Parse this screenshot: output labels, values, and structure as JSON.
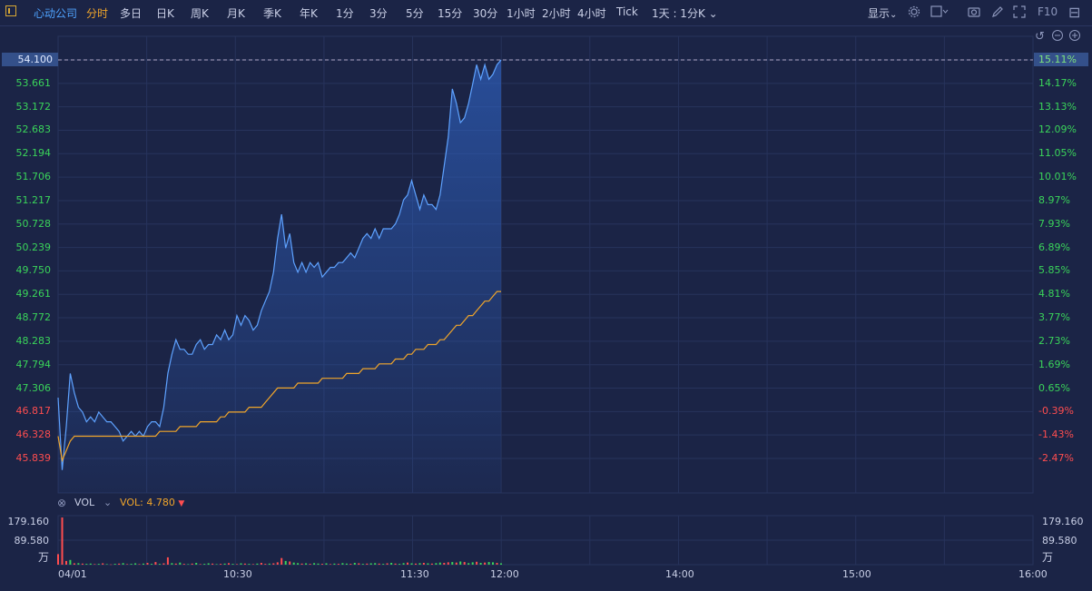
{
  "toolbar": {
    "stock_name": "心动公司",
    "tabs": [
      "分时",
      "多日",
      "日K",
      "周K",
      "月K",
      "季K",
      "年K",
      "1分",
      "3分",
      "5分",
      "15分",
      "30分",
      "1小时",
      "2小时",
      "4小时",
      "Tick"
    ],
    "active_tab": "分时",
    "period_select": "1天 : 1分K",
    "display_label": "显示",
    "f10_label": "F10"
  },
  "price_axis": {
    "left_labels": [
      "54.100",
      "53.661",
      "53.172",
      "52.683",
      "52.194",
      "51.706",
      "51.217",
      "50.728",
      "50.239",
      "49.750",
      "49.261",
      "48.772",
      "48.283",
      "47.794",
      "47.306",
      "46.817",
      "46.328",
      "45.839"
    ],
    "right_labels": [
      "15.11%",
      "14.17%",
      "13.13%",
      "12.09%",
      "11.05%",
      "10.01%",
      "8.97%",
      "7.93%",
      "6.89%",
      "5.85%",
      "4.81%",
      "3.77%",
      "2.73%",
      "1.69%",
      "0.65%",
      "-0.39%",
      "-1.43%",
      "-2.47%"
    ],
    "current_price": "54.100",
    "current_pct": "15.11%"
  },
  "volume_panel": {
    "indicator": "VOL",
    "value_label": "VOL: 4.780",
    "axis_labels": [
      "179.160",
      "89.580",
      "万"
    ]
  },
  "time_axis": [
    "04/01",
    "10:30",
    "11:30",
    "12:00",
    "14:00",
    "15:00",
    "16:00"
  ],
  "colors": {
    "background": "#1b2446",
    "grid": "#27335c",
    "price_line": "#5ea2ff",
    "avg_line": "#f0a52a",
    "up": "#ff4d4f",
    "down": "#3ad45a",
    "positive_axis": "#3ad45a",
    "negative_axis": "#ff4d4f",
    "accent": "#4fa3ff"
  },
  "chart_data": {
    "type": "line",
    "x_range": [
      "09:30",
      "16:00"
    ],
    "ylim": [
      45.839,
      54.1
    ],
    "series": [],
    "price": [
      47.1,
      45.6,
      46.5,
      47.6,
      47.2,
      46.9,
      46.8,
      46.6,
      46.7,
      46.6,
      46.8,
      46.7,
      46.6,
      46.6,
      46.5,
      46.4,
      46.2,
      46.3,
      46.4,
      46.3,
      46.4,
      46.3,
      46.5,
      46.6,
      46.6,
      46.5,
      46.9,
      47.6,
      48.0,
      48.3,
      48.1,
      48.1,
      48.0,
      48.0,
      48.2,
      48.3,
      48.1,
      48.2,
      48.2,
      48.4,
      48.3,
      48.5,
      48.3,
      48.4,
      48.8,
      48.6,
      48.8,
      48.7,
      48.5,
      48.6,
      48.9,
      49.1,
      49.3,
      49.7,
      50.4,
      50.9,
      50.2,
      50.5,
      49.9,
      49.7,
      49.9,
      49.7,
      49.9,
      49.8,
      49.9,
      49.6,
      49.7,
      49.8,
      49.8,
      49.9,
      49.9,
      50.0,
      50.1,
      50.0,
      50.2,
      50.4,
      50.5,
      50.4,
      50.6,
      50.4,
      50.6,
      50.6,
      50.6,
      50.7,
      50.9,
      51.2,
      51.3,
      51.6,
      51.3,
      51.0,
      51.3,
      51.1,
      51.1,
      51.0,
      51.3,
      51.9,
      52.5,
      53.5,
      53.2,
      52.8,
      52.9,
      53.2,
      53.6,
      54.0,
      53.7,
      54.0,
      53.7,
      53.8,
      54.0,
      54.1
    ],
    "avg": [
      46.3,
      45.8,
      46.0,
      46.2,
      46.3,
      46.3,
      46.3,
      46.3,
      46.3,
      46.3,
      46.3,
      46.3,
      46.3,
      46.3,
      46.3,
      46.3,
      46.3,
      46.3,
      46.3,
      46.3,
      46.3,
      46.3,
      46.3,
      46.3,
      46.3,
      46.4,
      46.4,
      46.4,
      46.4,
      46.4,
      46.5,
      46.5,
      46.5,
      46.5,
      46.5,
      46.6,
      46.6,
      46.6,
      46.6,
      46.6,
      46.7,
      46.7,
      46.8,
      46.8,
      46.8,
      46.8,
      46.8,
      46.9,
      46.9,
      46.9,
      46.9,
      47.0,
      47.1,
      47.2,
      47.3,
      47.3,
      47.3,
      47.3,
      47.3,
      47.4,
      47.4,
      47.4,
      47.4,
      47.4,
      47.4,
      47.5,
      47.5,
      47.5,
      47.5,
      47.5,
      47.5,
      47.6,
      47.6,
      47.6,
      47.6,
      47.7,
      47.7,
      47.7,
      47.7,
      47.8,
      47.8,
      47.8,
      47.8,
      47.9,
      47.9,
      47.9,
      48.0,
      48.0,
      48.1,
      48.1,
      48.1,
      48.2,
      48.2,
      48.2,
      48.3,
      48.3,
      48.4,
      48.5,
      48.6,
      48.6,
      48.7,
      48.8,
      48.8,
      48.9,
      49.0,
      49.1,
      49.1,
      49.2,
      49.3,
      49.3
    ],
    "volume": [
      40,
      179,
      14,
      18,
      5,
      6,
      4,
      3,
      4,
      2,
      3,
      5,
      2,
      1,
      3,
      4,
      6,
      2,
      3,
      5,
      2,
      4,
      7,
      3,
      10,
      3,
      5,
      28,
      6,
      4,
      8,
      3,
      2,
      4,
      7,
      2,
      3,
      5,
      4,
      2,
      3,
      4,
      6,
      3,
      2,
      5,
      4,
      3,
      2,
      4,
      7,
      3,
      4,
      5,
      9,
      25,
      14,
      12,
      8,
      6,
      4,
      5,
      3,
      6,
      4,
      3,
      5,
      2,
      4,
      3,
      6,
      4,
      3,
      7,
      5,
      3,
      4,
      5,
      6,
      4,
      3,
      5,
      7,
      4,
      3,
      6,
      8,
      5,
      4,
      6,
      7,
      5,
      4,
      6,
      8,
      7,
      9,
      10,
      8,
      12,
      10,
      6,
      9,
      11,
      7,
      8,
      10,
      9,
      7,
      5
    ],
    "volume_up": [
      1,
      1,
      1,
      0,
      1,
      0,
      1,
      0,
      0,
      1,
      0,
      1,
      0,
      1,
      0,
      1,
      0,
      1,
      0,
      0,
      1,
      0,
      1,
      0,
      1,
      0,
      1,
      1,
      0,
      1,
      0,
      1,
      0,
      1,
      0,
      1,
      0,
      0,
      1,
      0,
      1,
      0,
      1,
      0,
      1,
      0,
      1,
      0,
      1,
      0,
      1,
      1,
      0,
      1,
      1,
      1,
      0,
      1,
      0,
      0,
      1,
      0,
      1,
      0,
      0,
      1,
      0,
      1,
      0,
      1,
      0,
      0,
      1,
      0,
      1,
      0,
      1,
      0,
      0,
      1,
      0,
      1,
      0,
      1,
      0,
      0,
      1,
      0,
      1,
      0,
      1,
      0,
      1,
      0,
      0,
      1,
      1,
      0,
      1,
      0,
      1,
      0,
      0,
      1,
      0,
      1,
      0,
      0,
      1,
      0
    ],
    "volume_max": 179.16
  }
}
